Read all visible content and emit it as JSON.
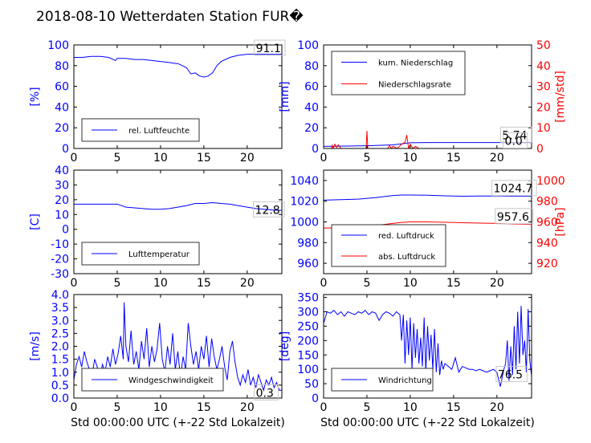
{
  "page": {
    "title": "2018-08-10 Wetterdaten Station FUR�"
  },
  "colors": {
    "left": "#0000ff",
    "right": "#ff0000",
    "axis": "#000000",
    "label_box": "#c8c8c8"
  },
  "chart_data": [
    {
      "id": "humidity",
      "type": "line",
      "xlim": [
        0,
        24
      ],
      "xticks": [
        0,
        5,
        10,
        15,
        20
      ],
      "ylim": [
        0,
        100
      ],
      "yticks": [
        0,
        20,
        40,
        60,
        80,
        100
      ],
      "ylabel": "[%]",
      "legend_position": "lower-left",
      "series": [
        {
          "name": "rel. Luftfeuchte",
          "axis": "left",
          "color": "#0000ff",
          "x": [
            0,
            1,
            2,
            3,
            4,
            4.8,
            5,
            6,
            7,
            8,
            9,
            10,
            11,
            11.8,
            12,
            13,
            13.5,
            14,
            14.5,
            15,
            15.5,
            16,
            16.5,
            17,
            18,
            19,
            20,
            21,
            22,
            23,
            24
          ],
          "y": [
            88,
            88,
            89,
            89,
            88,
            85,
            87,
            87,
            86,
            86,
            85,
            84,
            83,
            82,
            82,
            78,
            72,
            73,
            70,
            69,
            70,
            73,
            80,
            84,
            88,
            90,
            91,
            91,
            91,
            91,
            91
          ]
        }
      ],
      "value_labels": [
        {
          "text": "91.1",
          "axis": "left",
          "x": 21.0,
          "y": 93
        }
      ]
    },
    {
      "id": "precip",
      "type": "line",
      "xlim": [
        0,
        24
      ],
      "xticks": [
        0,
        5,
        10,
        15,
        20
      ],
      "ylim": [
        0,
        100
      ],
      "yticks": [
        0,
        20,
        40,
        60,
        80,
        100
      ],
      "ylabel": "[mm]",
      "ylim2": [
        0,
        50
      ],
      "yticks2": [
        0,
        10,
        20,
        30,
        40,
        50
      ],
      "ylabel2": "[mm/std]",
      "legend_position": "upper-left",
      "series": [
        {
          "name": "kum. Niederschlag",
          "axis": "left",
          "color": "#0000ff",
          "x": [
            0,
            1,
            5,
            8,
            9,
            10,
            12,
            20,
            24
          ],
          "y": [
            2,
            2.2,
            2.6,
            3.5,
            4.5,
            5.5,
            5.74,
            5.74,
            5.74
          ]
        },
        {
          "name": "Niederschlagsrate",
          "axis": "right",
          "color": "#ff0000",
          "x": [
            0,
            0.9,
            1.0,
            1.1,
            1.3,
            1.5,
            1.7,
            2.0,
            4.9,
            5.0,
            5.1,
            7.4,
            7.6,
            7.8,
            8.0,
            8.5,
            9.0,
            9.4,
            9.6,
            9.8,
            10.0,
            10.3,
            10.6,
            11.0,
            24
          ],
          "y": [
            0,
            0,
            1.5,
            0,
            2.0,
            0.5,
            1.8,
            0,
            0,
            8.5,
            0,
            0,
            1.5,
            0,
            1.0,
            0,
            2.0,
            3.0,
            6.5,
            0,
            2.0,
            0,
            1.0,
            0,
            0
          ]
        }
      ],
      "value_labels": [
        {
          "text": "5.74",
          "axis": "left",
          "x": 20.6,
          "y": 9
        },
        {
          "text": "0.0",
          "axis": "left",
          "x": 20.9,
          "y": 3.5
        }
      ]
    },
    {
      "id": "temperature",
      "type": "line",
      "xlim": [
        0,
        24
      ],
      "xticks": [
        0,
        5,
        10,
        15,
        20
      ],
      "ylim": [
        -30,
        40
      ],
      "yticks": [
        -30,
        -20,
        -10,
        0,
        10,
        20,
        30,
        40
      ],
      "ylabel": "[C]",
      "legend_position": "lower-left",
      "series": [
        {
          "name": "Lufttemperatur",
          "axis": "left",
          "color": "#0000ff",
          "x": [
            0,
            1,
            2,
            3,
            4,
            5,
            5.5,
            6,
            7,
            8,
            9,
            10,
            11,
            12,
            13,
            14,
            15,
            16,
            17,
            18,
            19,
            20,
            21,
            22,
            23,
            24
          ],
          "y": [
            17,
            17,
            17,
            17,
            17,
            17,
            16,
            15,
            14.5,
            14,
            13.5,
            13.5,
            14,
            15,
            16,
            17.5,
            17.5,
            18,
            17.5,
            17,
            16,
            15,
            14,
            13.5,
            13,
            12.8
          ]
        }
      ],
      "value_labels": [
        {
          "text": "12.8",
          "axis": "left",
          "x": 20.9,
          "y": 10.5
        }
      ]
    },
    {
      "id": "pressure",
      "type": "line",
      "xlim": [
        0,
        24
      ],
      "xticks": [
        0,
        5,
        10,
        15,
        20
      ],
      "ylim": [
        950,
        1050
      ],
      "yticks": [
        960,
        980,
        1000,
        1020,
        1040
      ],
      "ylim2": [
        910,
        1010
      ],
      "yticks2": [
        920,
        940,
        960,
        980,
        1000
      ],
      "ylabel2": "[hPa]",
      "legend_position": "lower-left",
      "series": [
        {
          "name": "red. Luftdruck",
          "axis": "left",
          "color": "#0000ff",
          "x": [
            0,
            2,
            4,
            6,
            8,
            9,
            10,
            12,
            14,
            16,
            18,
            20,
            22,
            24
          ],
          "y": [
            1021,
            1021.5,
            1022,
            1023.5,
            1025.5,
            1026,
            1026,
            1025.8,
            1025.2,
            1024.8,
            1025,
            1025,
            1024.8,
            1024.7
          ]
        },
        {
          "name": "abs. Luftdruck",
          "axis": "right",
          "color": "#ff0000",
          "x": [
            0,
            2,
            4,
            6,
            8,
            9,
            10,
            12,
            14,
            16,
            18,
            20,
            22,
            24
          ],
          "y": [
            954,
            954.5,
            955,
            956.5,
            958.5,
            959.5,
            960,
            960,
            959.6,
            959.2,
            958.8,
            958.5,
            957.8,
            957.6
          ]
        }
      ],
      "value_labels": [
        {
          "text": "1024.7",
          "axis": "left",
          "x": 19.6,
          "y": 1028.5
        },
        {
          "text": "957.6",
          "axis": "left",
          "x": 20.0,
          "y": 1001.3
        }
      ]
    },
    {
      "id": "wind_speed",
      "type": "line",
      "xlim": [
        0,
        24
      ],
      "xticks": [
        0,
        5,
        10,
        15,
        20
      ],
      "xlabel": "Std 00:00:00 UTC (+-22 Std Lokalzeit)",
      "ylim": [
        0.0,
        4.0
      ],
      "yticks": [
        0.0,
        0.5,
        1.0,
        1.5,
        2.0,
        2.5,
        3.0,
        3.5,
        4.0
      ],
      "ylabel": "[m/s]",
      "legend_position": "lower-left",
      "series": [
        {
          "name": "Windgeschwindigkeit",
          "axis": "left",
          "color": "#0000ff",
          "x": [
            0,
            0.3,
            0.6,
            0.9,
            1.2,
            1.5,
            1.8,
            2.1,
            2.4,
            2.7,
            3.0,
            3.3,
            3.6,
            3.9,
            4.2,
            4.5,
            4.8,
            5.1,
            5.4,
            5.7,
            5.8,
            6.0,
            6.3,
            6.6,
            6.9,
            7.2,
            7.5,
            7.8,
            8.1,
            8.4,
            8.7,
            9.0,
            9.3,
            9.6,
            9.9,
            10.2,
            10.5,
            10.8,
            11.1,
            11.4,
            11.7,
            12.0,
            12.3,
            12.6,
            12.9,
            13.2,
            13.5,
            13.8,
            14.1,
            14.4,
            14.7,
            15.0,
            15.3,
            15.6,
            15.9,
            16.2,
            16.5,
            16.8,
            17.1,
            17.4,
            17.7,
            18.0,
            18.3,
            18.6,
            18.9,
            19.2,
            19.5,
            19.8,
            20.1,
            20.4,
            20.7,
            21.0,
            21.3,
            21.6,
            21.9,
            22.2,
            22.5,
            22.8,
            23.1,
            23.4,
            23.7,
            24.0
          ],
          "y": [
            0.7,
            1.3,
            1.6,
            1.2,
            1.8,
            1.4,
            1.1,
            0.9,
            1.5,
            1.2,
            0.8,
            1.3,
            1.0,
            1.6,
            1.2,
            1.9,
            1.3,
            1.7,
            2.4,
            1.5,
            3.7,
            2.0,
            1.4,
            2.6,
            1.3,
            1.8,
            1.1,
            2.2,
            1.5,
            2.7,
            1.2,
            2.0,
            1.4,
            1.9,
            2.9,
            1.5,
            1.0,
            2.0,
            1.3,
            2.5,
            1.1,
            1.8,
            0.8,
            1.6,
            1.1,
            2.9,
            2.0,
            1.3,
            1.8,
            1.1,
            2.0,
            1.5,
            2.4,
            1.2,
            2.3,
            1.6,
            1.1,
            1.5,
            2.0,
            1.2,
            0.7,
            1.8,
            2.2,
            1.4,
            0.8,
            0.5,
            0.9,
            0.6,
            1.1,
            0.5,
            0.8,
            0.4,
            0.9,
            0.6,
            0.3,
            0.7,
            0.5,
            0.8,
            0.4,
            0.6,
            0.3,
            0.3
          ]
        }
      ],
      "value_labels": [
        {
          "text": "0.3",
          "axis": "left",
          "x": 21.0,
          "y": 0.05
        }
      ]
    },
    {
      "id": "wind_dir",
      "type": "line",
      "xlim": [
        0,
        24
      ],
      "xticks": [
        0,
        5,
        10,
        15,
        20
      ],
      "xlabel": "Std 00:00:00 UTC (+-22 Std Lokalzeit)",
      "ylim": [
        0,
        360
      ],
      "yticks": [
        0,
        50,
        100,
        150,
        200,
        250,
        300,
        350
      ],
      "ylabel": "[deg]",
      "legend_position": "lower-left",
      "series": [
        {
          "name": "Windrichtung",
          "axis": "left",
          "color": "#0000ff",
          "x": [
            0,
            0.4,
            0.8,
            1.2,
            1.6,
            2.0,
            2.4,
            2.8,
            3.2,
            3.6,
            4.0,
            4.4,
            4.8,
            5.2,
            5.6,
            6.0,
            6.4,
            6.8,
            7.2,
            7.6,
            8.0,
            8.4,
            8.8,
            9.0,
            9.2,
            9.4,
            9.6,
            9.8,
            10.0,
            10.2,
            10.4,
            10.6,
            10.8,
            11.0,
            11.2,
            11.4,
            11.6,
            11.8,
            12.0,
            12.2,
            12.4,
            12.6,
            12.8,
            13.0,
            13.2,
            13.4,
            13.6,
            13.8,
            14.0,
            14.4,
            14.8,
            15.2,
            15.6,
            16.0,
            16.4,
            16.8,
            17.2,
            17.6,
            18.0,
            18.4,
            18.8,
            19.2,
            19.6,
            20.0,
            20.4,
            20.8,
            21.0,
            21.2,
            21.4,
            21.6,
            21.8,
            22.0,
            22.2,
            22.4,
            22.6,
            22.8,
            23.0,
            23.2,
            23.4,
            23.6,
            23.8,
            24.0
          ],
          "y": [
            260,
            300,
            295,
            305,
            290,
            300,
            285,
            300,
            295,
            290,
            300,
            295,
            305,
            290,
            300,
            295,
            270,
            290,
            300,
            295,
            285,
            300,
            290,
            200,
            290,
            120,
            270,
            150,
            280,
            100,
            260,
            140,
            240,
            120,
            210,
            110,
            280,
            90,
            250,
            130,
            220,
            100,
            240,
            90,
            190,
            80,
            130,
            100,
            120,
            110,
            100,
            140,
            90,
            110,
            105,
            100,
            100,
            95,
            100,
            95,
            90,
            95,
            100,
            90,
            40,
            100,
            120,
            200,
            60,
            180,
            80,
            250,
            100,
            300,
            120,
            320,
            150,
            200,
            90,
            310,
            130,
            76.5
          ]
        }
      ],
      "value_labels": [
        {
          "text": "76.5",
          "axis": "left",
          "x": 20.1,
          "y": 68
        }
      ]
    }
  ]
}
